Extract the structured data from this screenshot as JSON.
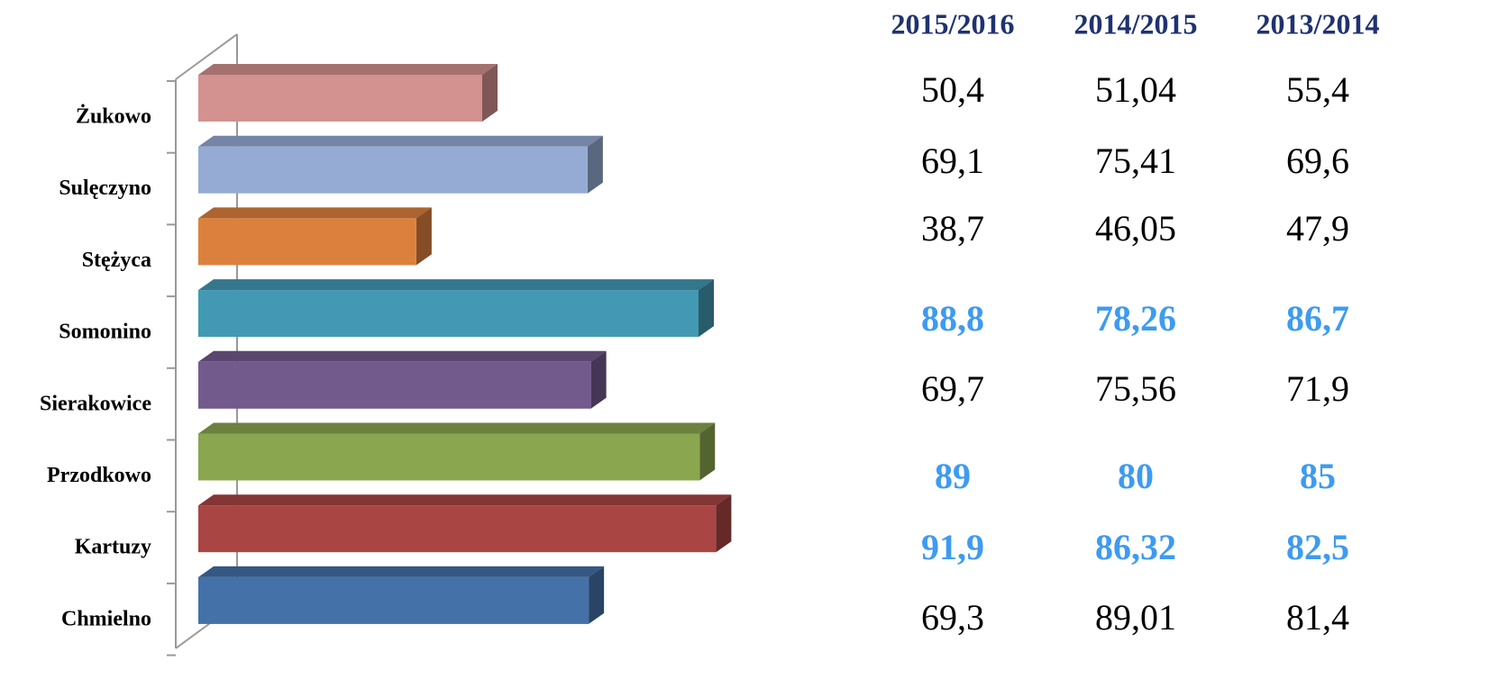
{
  "chart_data": {
    "type": "bar",
    "orientation": "horizontal",
    "categories": [
      "Żukowo",
      "Sulęczyno",
      "Stężyca",
      "Somonino",
      "Sierakowice",
      "Przodkowo",
      "Kartuzy",
      "Chmielno"
    ],
    "values": [
      50.4,
      69.1,
      38.7,
      88.8,
      69.7,
      89,
      91.9,
      69.3
    ],
    "colors": [
      "#d39190",
      "#95abd3",
      "#dc813d",
      "#4399b3",
      "#735a8d",
      "#8aa64f",
      "#a94543",
      "#4471a8"
    ],
    "xlim": [
      0,
      100
    ]
  },
  "table": {
    "columns": [
      "2015/2016",
      "2014/2015",
      "2013/2014"
    ],
    "rows": [
      [
        "50,4",
        "51,04",
        "55,4"
      ],
      [
        "69,1",
        "75,41",
        "69,6"
      ],
      [
        "38,7",
        "46,05",
        "47,9"
      ],
      [
        "88,8",
        "78,26",
        "86,7"
      ],
      [
        "69,7",
        "75,56",
        "71,9"
      ],
      [
        "89",
        "80",
        "85"
      ],
      [
        "91,9",
        "86,32",
        "82,5"
      ],
      [
        "69,3",
        "89,01",
        "81,4"
      ]
    ],
    "highlight": [
      false,
      false,
      false,
      true,
      false,
      true,
      true,
      false
    ],
    "highlight_color": "#3d9bf0",
    "header_color": "#1f3270"
  }
}
